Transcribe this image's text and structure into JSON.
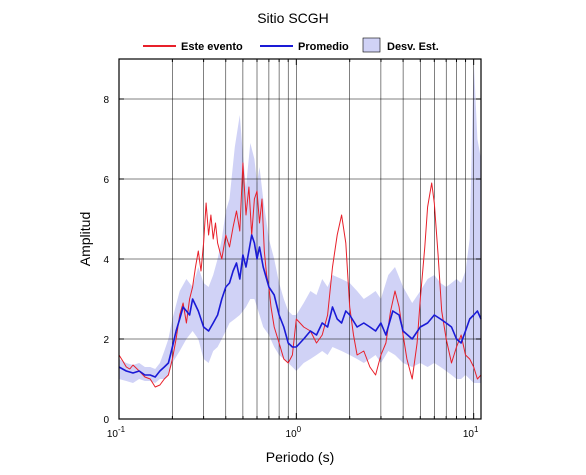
{
  "chart_data": {
    "type": "line",
    "title": "Sitio SCGH",
    "xlabel": "Periodo (s)",
    "ylabel": "Amplitud",
    "xscale": "log",
    "xlim": [
      0.1,
      11
    ],
    "ylim": [
      0,
      9
    ],
    "grid": true,
    "legend_position": "top",
    "x_tick_labels": [
      {
        "base": "10",
        "exp": "-1",
        "value": 0.1
      },
      {
        "base": "10",
        "exp": "0",
        "value": 1
      },
      {
        "base": "10",
        "exp": "1",
        "value": 10
      }
    ],
    "y_ticks": [
      0,
      2,
      4,
      6,
      8
    ],
    "y_tick_labels": [
      "0",
      "2",
      "4",
      "6",
      "8"
    ],
    "series": [
      {
        "name": "Este evento",
        "color": "#e8202a",
        "x": [
          0.1,
          0.105,
          0.11,
          0.115,
          0.12,
          0.13,
          0.14,
          0.15,
          0.16,
          0.17,
          0.18,
          0.19,
          0.2,
          0.21,
          0.22,
          0.23,
          0.24,
          0.25,
          0.26,
          0.27,
          0.28,
          0.29,
          0.3,
          0.31,
          0.32,
          0.33,
          0.34,
          0.35,
          0.36,
          0.38,
          0.4,
          0.42,
          0.44,
          0.46,
          0.48,
          0.5,
          0.52,
          0.54,
          0.56,
          0.58,
          0.6,
          0.62,
          0.64,
          0.66,
          0.68,
          0.7,
          0.72,
          0.75,
          0.8,
          0.85,
          0.9,
          0.95,
          1.0,
          1.1,
          1.2,
          1.3,
          1.4,
          1.5,
          1.6,
          1.7,
          1.8,
          1.9,
          2.0,
          2.1,
          2.2,
          2.4,
          2.6,
          2.8,
          3.0,
          3.2,
          3.4,
          3.6,
          3.8,
          4.0,
          4.2,
          4.5,
          4.8,
          5.0,
          5.3,
          5.5,
          5.8,
          6.0,
          6.3,
          6.6,
          7.0,
          7.5,
          8.0,
          8.5,
          9.0,
          9.5,
          10.0,
          10.5,
          11.0
        ],
        "y": [
          1.6,
          1.45,
          1.3,
          1.25,
          1.35,
          1.2,
          1.05,
          1.0,
          0.8,
          0.85,
          1.0,
          1.1,
          1.5,
          2.0,
          2.6,
          2.9,
          2.4,
          3.0,
          3.3,
          3.8,
          4.2,
          3.7,
          4.4,
          5.4,
          4.6,
          5.1,
          4.5,
          4.9,
          4.4,
          4.0,
          4.6,
          4.3,
          4.8,
          5.2,
          4.7,
          6.4,
          5.1,
          5.8,
          4.6,
          5.5,
          5.7,
          4.9,
          5.5,
          4.2,
          3.6,
          3.3,
          2.8,
          2.3,
          1.9,
          1.5,
          1.4,
          1.6,
          2.5,
          2.3,
          2.2,
          1.9,
          2.1,
          2.6,
          3.8,
          4.6,
          5.1,
          4.4,
          2.8,
          2.1,
          1.6,
          1.7,
          1.3,
          1.1,
          1.6,
          1.9,
          2.7,
          3.2,
          2.8,
          2.1,
          1.5,
          1.0,
          1.9,
          3.0,
          4.3,
          5.3,
          5.9,
          5.4,
          4.1,
          2.7,
          2.0,
          1.4,
          1.8,
          2.1,
          1.6,
          1.5,
          1.3,
          1.0,
          1.1
        ]
      },
      {
        "name": "Promedio",
        "color": "#1a1ad6",
        "x": [
          0.1,
          0.11,
          0.12,
          0.13,
          0.14,
          0.15,
          0.16,
          0.17,
          0.18,
          0.19,
          0.2,
          0.21,
          0.22,
          0.23,
          0.24,
          0.25,
          0.26,
          0.28,
          0.3,
          0.32,
          0.34,
          0.36,
          0.38,
          0.4,
          0.42,
          0.44,
          0.46,
          0.48,
          0.5,
          0.52,
          0.54,
          0.56,
          0.58,
          0.6,
          0.62,
          0.65,
          0.7,
          0.75,
          0.8,
          0.85,
          0.9,
          0.95,
          1.0,
          1.1,
          1.2,
          1.3,
          1.4,
          1.5,
          1.6,
          1.7,
          1.8,
          1.9,
          2.0,
          2.2,
          2.4,
          2.6,
          2.8,
          3.0,
          3.2,
          3.5,
          3.8,
          4.0,
          4.5,
          5.0,
          5.5,
          6.0,
          6.5,
          7.0,
          7.5,
          8.0,
          8.5,
          9.0,
          9.5,
          10.0,
          10.5,
          11.0
        ],
        "y": [
          1.3,
          1.2,
          1.15,
          1.2,
          1.1,
          1.1,
          1.05,
          1.2,
          1.3,
          1.4,
          1.8,
          2.2,
          2.5,
          2.8,
          2.7,
          2.6,
          3.0,
          2.7,
          2.3,
          2.2,
          2.4,
          2.6,
          3.0,
          3.3,
          3.4,
          3.7,
          3.9,
          3.5,
          4.1,
          3.8,
          4.2,
          4.6,
          4.4,
          4.0,
          4.3,
          3.8,
          3.3,
          3.1,
          2.6,
          2.3,
          1.9,
          1.8,
          1.8,
          2.0,
          2.2,
          2.1,
          2.4,
          2.3,
          2.8,
          2.5,
          2.4,
          2.7,
          2.6,
          2.3,
          2.4,
          2.3,
          2.2,
          2.4,
          2.1,
          2.7,
          2.6,
          2.2,
          2.0,
          2.3,
          2.4,
          2.6,
          2.5,
          2.4,
          2.3,
          2.0,
          1.9,
          2.2,
          2.5,
          2.6,
          2.7,
          2.5
        ]
      }
    ],
    "band": {
      "name": "Desv. Est.",
      "color": "#d0d2f6",
      "x": [
        0.1,
        0.11,
        0.12,
        0.13,
        0.14,
        0.15,
        0.16,
        0.17,
        0.18,
        0.19,
        0.2,
        0.22,
        0.24,
        0.26,
        0.28,
        0.3,
        0.32,
        0.34,
        0.36,
        0.38,
        0.4,
        0.42,
        0.45,
        0.48,
        0.5,
        0.52,
        0.55,
        0.58,
        0.6,
        0.62,
        0.65,
        0.7,
        0.75,
        0.8,
        0.85,
        0.9,
        0.95,
        1.0,
        1.1,
        1.2,
        1.3,
        1.4,
        1.5,
        1.6,
        1.8,
        2.0,
        2.2,
        2.4,
        2.6,
        2.8,
        3.0,
        3.3,
        3.6,
        4.0,
        4.5,
        5.0,
        5.5,
        6.0,
        6.5,
        7.0,
        7.5,
        8.0,
        8.5,
        9.0,
        9.5,
        10.0,
        10.5,
        11.0
      ],
      "upper": [
        1.5,
        1.4,
        1.35,
        1.4,
        1.3,
        1.3,
        1.25,
        1.4,
        1.7,
        2.0,
        2.5,
        3.2,
        3.5,
        3.3,
        3.8,
        3.4,
        3.3,
        3.6,
        4.0,
        4.5,
        5.2,
        5.5,
        6.8,
        7.6,
        6.6,
        5.8,
        6.9,
        6.5,
        5.9,
        6.3,
        5.5,
        4.5,
        4.0,
        3.4,
        3.0,
        2.7,
        2.6,
        2.6,
        2.9,
        3.2,
        3.1,
        3.5,
        3.3,
        3.6,
        3.5,
        3.4,
        3.2,
        3.0,
        3.1,
        3.2,
        3.0,
        3.6,
        3.8,
        3.3,
        2.9,
        3.2,
        3.5,
        3.6,
        3.4,
        3.3,
        3.4,
        3.5,
        3.4,
        3.7,
        4.5,
        9.0,
        7.0,
        6.5
      ],
      "lower": [
        1.0,
        0.95,
        0.9,
        1.0,
        0.95,
        0.95,
        0.9,
        1.0,
        1.0,
        1.1,
        1.4,
        1.7,
        2.0,
        2.2,
        2.0,
        1.5,
        1.4,
        1.7,
        1.8,
        2.0,
        2.2,
        2.4,
        2.5,
        2.6,
        2.7,
        2.8,
        3.0,
        3.0,
        2.8,
        2.6,
        2.3,
        2.1,
        1.8,
        1.6,
        1.5,
        1.4,
        1.3,
        1.2,
        1.4,
        1.5,
        1.6,
        1.7,
        1.6,
        1.8,
        1.7,
        1.6,
        1.5,
        1.4,
        1.5,
        1.6,
        1.4,
        1.7,
        1.6,
        1.4,
        1.3,
        1.4,
        1.3,
        1.4,
        1.3,
        1.2,
        1.1,
        1.0,
        1.0,
        1.1,
        1.0,
        0.9,
        0.9,
        0.9
      ]
    }
  }
}
